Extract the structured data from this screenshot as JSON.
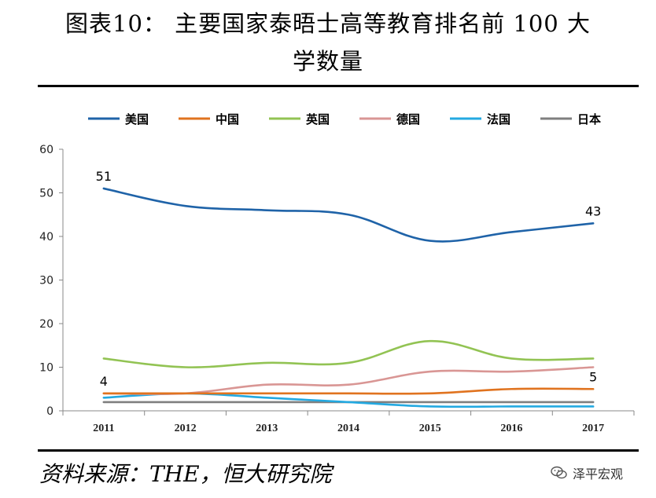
{
  "title": {
    "line1": "图表10： 主要国家泰晤士高等教育排名前 100 大",
    "line2": "学数量"
  },
  "source": "资料来源：THE，恒大研究院",
  "watermark": {
    "text": "泽平宏观",
    "icon": "wechat-icon"
  },
  "chart_data": {
    "type": "line",
    "x": [
      "2011",
      "2012",
      "2013",
      "2014",
      "2015",
      "2016",
      "2017"
    ],
    "ylim": [
      0,
      60
    ],
    "yticks": [
      0,
      10,
      20,
      30,
      40,
      50,
      60
    ],
    "grid": false,
    "legend_position": "top",
    "series": [
      {
        "name": "美国",
        "color": "#1F63A8",
        "values": [
          51,
          47,
          46,
          45,
          39,
          41,
          43
        ]
      },
      {
        "name": "中国",
        "color": "#E0731F",
        "values": [
          4,
          4,
          4,
          4,
          4,
          5,
          5
        ]
      },
      {
        "name": "英国",
        "color": "#92C353",
        "values": [
          12,
          10,
          11,
          11,
          16,
          12,
          12
        ]
      },
      {
        "name": "德国",
        "color": "#D99694",
        "values": [
          4,
          4,
          6,
          6,
          9,
          9,
          10
        ]
      },
      {
        "name": "法国",
        "color": "#23A9E1",
        "values": [
          3,
          4,
          3,
          2,
          1,
          1,
          1
        ]
      },
      {
        "name": "日本",
        "color": "#7F7F7F",
        "values": [
          2,
          2,
          2,
          2,
          2,
          2,
          2
        ]
      }
    ],
    "annotations": [
      {
        "series": 0,
        "index": 0,
        "text": "51"
      },
      {
        "series": 0,
        "index": 6,
        "text": "43"
      },
      {
        "series": 1,
        "index": 0,
        "text": "4"
      },
      {
        "series": 1,
        "index": 6,
        "text": "5"
      }
    ]
  }
}
